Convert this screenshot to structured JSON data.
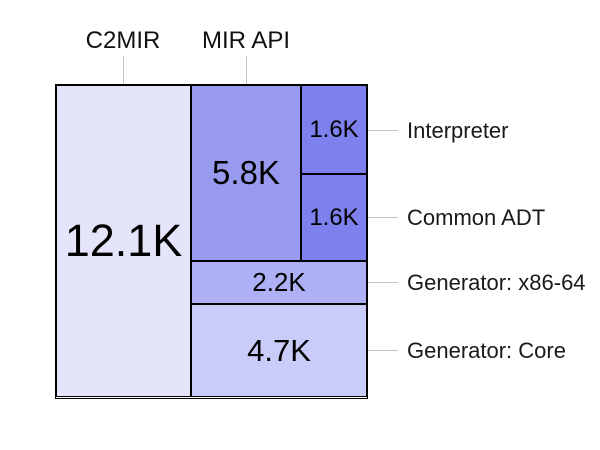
{
  "chart_data": {
    "type": "treemap",
    "description": "Treemap of code sizes in K lines per component",
    "blocks": [
      {
        "id": "c2mir",
        "label": "C2MIR",
        "value_text": "12.1K",
        "value_k": 12.1,
        "color": "#e4e4fa",
        "label_side": "top"
      },
      {
        "id": "mir-api",
        "label": "MIR API",
        "value_text": "5.8K",
        "value_k": 5.8,
        "color": "#989af0",
        "label_side": "top"
      },
      {
        "id": "interpreter",
        "label": "Interpreter",
        "value_text": "1.6K",
        "value_k": 1.6,
        "color": "#7e80ed",
        "label_side": "right"
      },
      {
        "id": "common-adt",
        "label": "Common ADT",
        "value_text": "1.6K",
        "value_k": 1.6,
        "color": "#7e80ed",
        "label_side": "right"
      },
      {
        "id": "generator-x86-64",
        "label": "Generator: x86-64",
        "value_text": "2.2K",
        "value_k": 2.2,
        "color": "#aeb0f5",
        "label_side": "right"
      },
      {
        "id": "generator-core",
        "label": "Generator: Core",
        "value_text": "4.7K",
        "value_k": 4.7,
        "color": "#c9cbf8",
        "label_side": "right"
      }
    ],
    "colors": {
      "border": "#000000",
      "leader_line": "#c4c4c4",
      "label_text": "#1a1a1a",
      "value_text": "#000000",
      "background": "#ffffff"
    },
    "layout_hints": {
      "column_labels_position": "top",
      "block_labels_position": "right",
      "grid": "off"
    }
  }
}
